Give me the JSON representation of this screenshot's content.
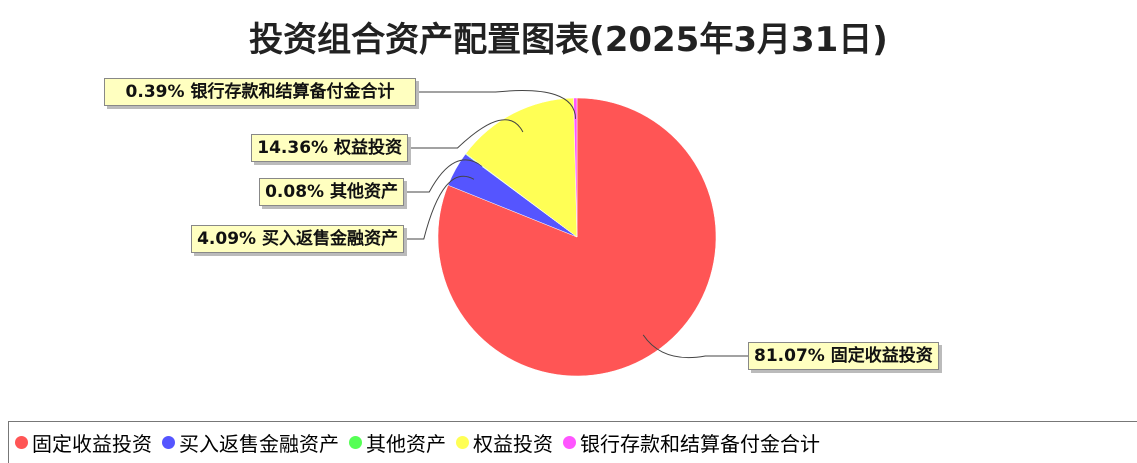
{
  "chart_data": {
    "type": "pie",
    "title": "投资组合资产配置图表(2025年3月31日)",
    "categories": [
      "固定收益投资",
      "买入返售金融资产",
      "其他资产",
      "权益投资",
      "银行存款和结算备付金合计"
    ],
    "values": [
      81.07,
      4.09,
      0.08,
      14.36,
      0.39
    ],
    "value_labels": [
      "81.07%",
      "4.09%",
      "0.08%",
      "14.36%",
      "0.39%"
    ],
    "colors": [
      "#ff5555",
      "#5555ff",
      "#55ff55",
      "#ffff55",
      "#ff55ff"
    ]
  }
}
